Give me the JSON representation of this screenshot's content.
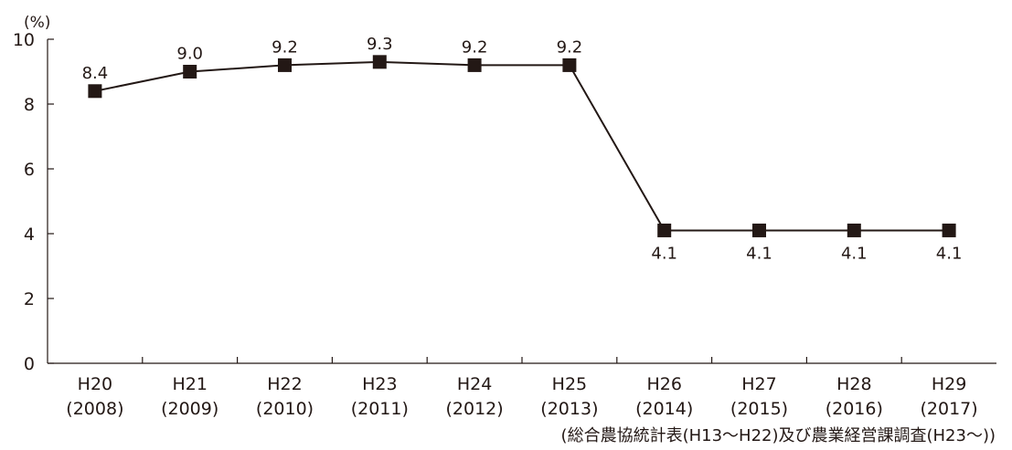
{
  "chart_data": {
    "type": "line",
    "y_unit": "(%)",
    "categories": [
      {
        "era": "H20",
        "year": "(2008)"
      },
      {
        "era": "H21",
        "year": "(2009)"
      },
      {
        "era": "H22",
        "year": "(2010)"
      },
      {
        "era": "H23",
        "year": "(2011)"
      },
      {
        "era": "H24",
        "year": "(2012)"
      },
      {
        "era": "H25",
        "year": "(2013)"
      },
      {
        "era": "H26",
        "year": "(2014)"
      },
      {
        "era": "H27",
        "year": "(2015)"
      },
      {
        "era": "H28",
        "year": "(2016)"
      },
      {
        "era": "H29",
        "year": "(2017)"
      }
    ],
    "values": [
      8.4,
      9.0,
      9.2,
      9.3,
      9.2,
      9.2,
      4.1,
      4.1,
      4.1,
      4.1
    ],
    "data_labels": [
      "8.4",
      "9.0",
      "9.2",
      "9.3",
      "9.2",
      "9.2",
      "4.1",
      "4.1",
      "4.1",
      "4.1"
    ],
    "label_position": [
      "above",
      "above",
      "above",
      "above",
      "above",
      "above",
      "below",
      "below",
      "below",
      "below"
    ],
    "ylim": [
      0,
      10
    ],
    "yticks": [
      0,
      2,
      4,
      6,
      8,
      10
    ],
    "grid": false,
    "marker": "square",
    "line_color": "#231815"
  },
  "source_note": "(総合農協統計表(H13〜H22)及び農業経営課調査(H23〜))"
}
